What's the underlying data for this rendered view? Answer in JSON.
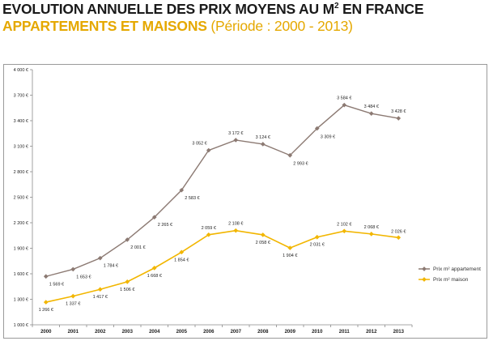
{
  "header": {
    "title_main": "EVOLUTION ANNUELLE DES PRIX MOYENS AU M",
    "title_sup": "2",
    "title_tail": " EN FRANCE",
    "subtitle_strong": "APPARTEMENTS ET MAISONS",
    "subtitle_soft": " (Période : 2000 - 2013)"
  },
  "chart_data": {
    "type": "line",
    "categories": [
      "2000",
      "2001",
      "2002",
      "2003",
      "2004",
      "2005",
      "2006",
      "2007",
      "2008",
      "2009",
      "2010",
      "2011",
      "2012",
      "2013"
    ],
    "ylim": [
      1000,
      4000
    ],
    "yticks": [
      1000,
      1300,
      1600,
      1900,
      2200,
      2500,
      2800,
      3100,
      3400,
      3700,
      4000
    ],
    "ytick_labels": [
      "1 000 €",
      "1 300 €",
      "1 600 €",
      "1 900 €",
      "2 200 €",
      "2 500 €",
      "2 800 €",
      "3 100 €",
      "3 400 €",
      "3 700 €",
      "4 000 €"
    ],
    "grid": false,
    "legend": "right",
    "series": [
      {
        "name": "Prix m² appartement",
        "color": "#8c7a73",
        "values": [
          1569,
          1653,
          1784,
          2001,
          2265,
          2583,
          3052,
          3172,
          3124,
          2993,
          3309,
          3584,
          3484,
          3428
        ],
        "labels": [
          "1 569 €",
          "1 653 €",
          "1 784 €",
          "2 001 €",
          "2 265 €",
          "2 583 €",
          "3 052 €",
          "3 172 €",
          "3 124 €",
          "2 993 €",
          "3 309 €",
          "3 584 €",
          "3 484 €",
          "3 428 €"
        ]
      },
      {
        "name": "Prix m² maison",
        "color": "#f2b600",
        "values": [
          1266,
          1337,
          1417,
          1506,
          1668,
          1854,
          2059,
          2108,
          2058,
          1904,
          2031,
          2102,
          2068,
          2026
        ],
        "labels": [
          "1 266 €",
          "1 337 €",
          "1 417 €",
          "1 506 €",
          "1 668 €",
          "1 854 €",
          "2 059 €",
          "2 108 €",
          "2 058 €",
          "1 904 €",
          "2 031 €",
          "2 102 €",
          "2 068 €",
          "2 026 €"
        ]
      }
    ]
  }
}
